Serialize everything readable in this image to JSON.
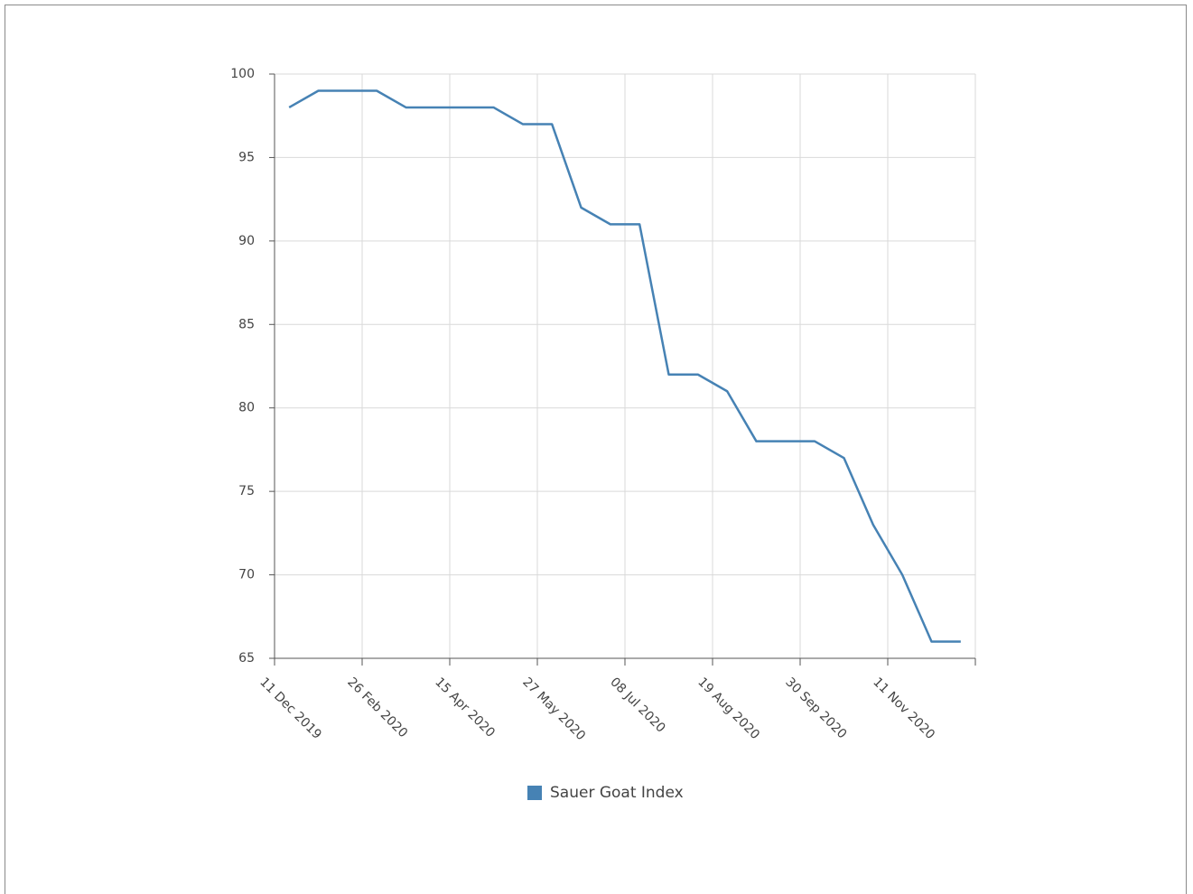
{
  "chart_data": {
    "type": "line",
    "categories": [
      "11 Dec 2019",
      null,
      null,
      "26 Feb 2020",
      null,
      null,
      "15 Apr 2020",
      null,
      null,
      "27 May 2020",
      null,
      null,
      "08 Jul 2020",
      null,
      null,
      "19 Aug 2020",
      null,
      null,
      "30 Sep 2020",
      null,
      null,
      "11 Nov 2020",
      null,
      null
    ],
    "series": [
      {
        "name": "Sauer Goat Index",
        "color": "#4682b4",
        "values": [
          98,
          99,
          99,
          99,
          98,
          98,
          98,
          98,
          97,
          97,
          92,
          91,
          91,
          82,
          82,
          81,
          78,
          78,
          78,
          77,
          73,
          70,
          66,
          66
        ]
      }
    ],
    "ylim": [
      65,
      100
    ],
    "yticks": [
      65,
      70,
      75,
      80,
      85,
      90,
      95,
      100
    ],
    "grid": true,
    "legend": "bottom"
  }
}
